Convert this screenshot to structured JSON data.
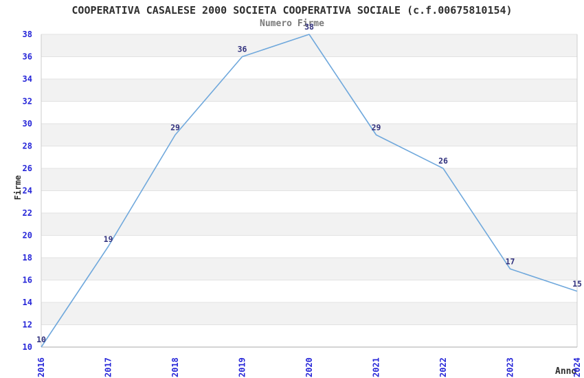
{
  "header": {
    "title": "COOPERATIVA CASALESE 2000 SOCIETA COOPERATIVA SOCIALE (c.f.00675810154)",
    "subtitle": "Numero Firme"
  },
  "axes": {
    "y_label": "Firme",
    "x_label": "Anno"
  },
  "chart_data": {
    "type": "line",
    "title": "COOPERATIVA CASALESE 2000 SOCIETA COOPERATIVA SOCIALE (c.f.00675810154)",
    "subtitle": "Numero Firme",
    "xlabel": "Anno",
    "ylabel": "Firme",
    "x": [
      "2016",
      "2017",
      "2018",
      "2019",
      "2020",
      "2021",
      "2022",
      "2023",
      "2024"
    ],
    "values": [
      10,
      19,
      29,
      36,
      38,
      29,
      26,
      17,
      15
    ],
    "ylim": [
      10,
      38
    ],
    "ytick_step": 2,
    "grid": "horizontal-alternating-bands",
    "legend": "none",
    "value_labels_shown": true,
    "colors": {
      "line": "#6fa8dc",
      "value_label": "#30307d",
      "tick_label": "#2626d8",
      "band_fill": "#f2f2f2",
      "gridline": "#e2e2e2",
      "axis_line": "#aaaaaa",
      "plot_border": "#cccccc",
      "background": "#ffffff"
    }
  }
}
